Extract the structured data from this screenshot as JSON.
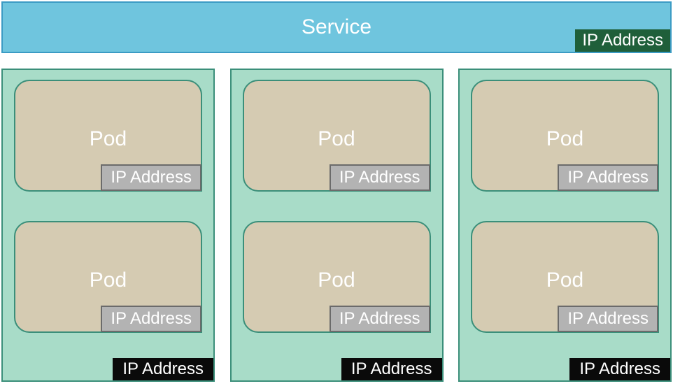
{
  "diagram": {
    "type": "infographic",
    "background_color": "#ffffff",
    "font_family": "Century Gothic",
    "service": {
      "label": "Service",
      "bg_color": "#6fc5de",
      "border_color": "#3b9bc4",
      "title_color": "#ffffff",
      "title_fontsize": 30,
      "ip_badge": {
        "label": "IP Address",
        "bg_color": "#1f5f3a",
        "text_color": "#ffffff",
        "fontsize": 24
      }
    },
    "node_style": {
      "bg_color": "#a8dcc8",
      "border_color": "#3b8f7a",
      "ip_badge": {
        "label": "IP Address",
        "bg_color": "#0a0a0a",
        "text_color": "#ffffff",
        "fontsize": 24
      }
    },
    "pod_style": {
      "bg_color": "#d5cbb2",
      "border_color": "#3b8f7a",
      "border_radius": 22,
      "title_color": "#ffffff",
      "title_fontsize": 30,
      "ip_badge": {
        "label": "IP Address",
        "bg_color": "#b3b3b3",
        "border_color": "#6b6b6b",
        "text_color": "#ffffff",
        "fontsize": 24
      }
    },
    "nodes": [
      {
        "pods": [
          {
            "label": "Pod",
            "ip_label": "IP Address"
          },
          {
            "label": "Pod",
            "ip_label": "IP Address"
          }
        ],
        "ip_label": "IP Address"
      },
      {
        "pods": [
          {
            "label": "Pod",
            "ip_label": "IP Address"
          },
          {
            "label": "Pod",
            "ip_label": "IP Address"
          }
        ],
        "ip_label": "IP Address"
      },
      {
        "pods": [
          {
            "label": "Pod",
            "ip_label": "IP Address"
          },
          {
            "label": "Pod",
            "ip_label": "IP Address"
          }
        ],
        "ip_label": "IP Address"
      }
    ]
  }
}
